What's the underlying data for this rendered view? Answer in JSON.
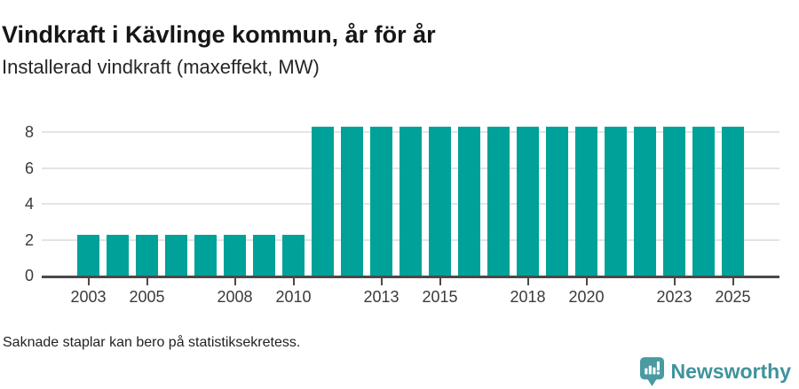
{
  "header": {
    "title": "Vindkraft i Kävlinge kommun, år för år",
    "subtitle": "Installerad vindkraft (maxeffekt, MW)"
  },
  "chart_data": {
    "type": "bar",
    "title": "Vindkraft i Kävlinge kommun, år för år",
    "subtitle": "Installerad vindkraft (maxeffekt, MW)",
    "categories": [
      "2003",
      "2004",
      "2005",
      "2006",
      "2007",
      "2008",
      "2009",
      "2010",
      "2011",
      "2012",
      "2013",
      "2014",
      "2015",
      "2016",
      "2017",
      "2018",
      "2019",
      "2020",
      "2021",
      "2022",
      "2023",
      "2024",
      "2025"
    ],
    "values": [
      2.3,
      2.3,
      2.3,
      2.3,
      2.3,
      2.3,
      2.3,
      2.3,
      8.3,
      8.3,
      8.3,
      8.3,
      8.3,
      8.3,
      8.3,
      8.3,
      8.3,
      8.3,
      8.3,
      8.3,
      8.3,
      8.3,
      8.3
    ],
    "xlabel": "",
    "ylabel": "",
    "ylim": [
      0,
      9
    ],
    "yticks": [
      0,
      2,
      4,
      6,
      8
    ],
    "xticks": [
      "2003",
      "2005",
      "2008",
      "2010",
      "2013",
      "2015",
      "2018",
      "2020",
      "2023",
      "2025"
    ],
    "grid": true,
    "legend": "none",
    "bar_color": "#00a199",
    "axis_color": "#4a4a4a",
    "gridline_color": "#e4e4e4",
    "tick_label_color": "#3b3b3b"
  },
  "footer": {
    "note": "Saknade staplar kan bero på statistiksekretess."
  },
  "branding": {
    "name": "Newsworthy",
    "icon": "newsworthy-speech-bubble-chart-icon",
    "text_color": "#3f939c",
    "icon_color": "#4a9aa2"
  }
}
